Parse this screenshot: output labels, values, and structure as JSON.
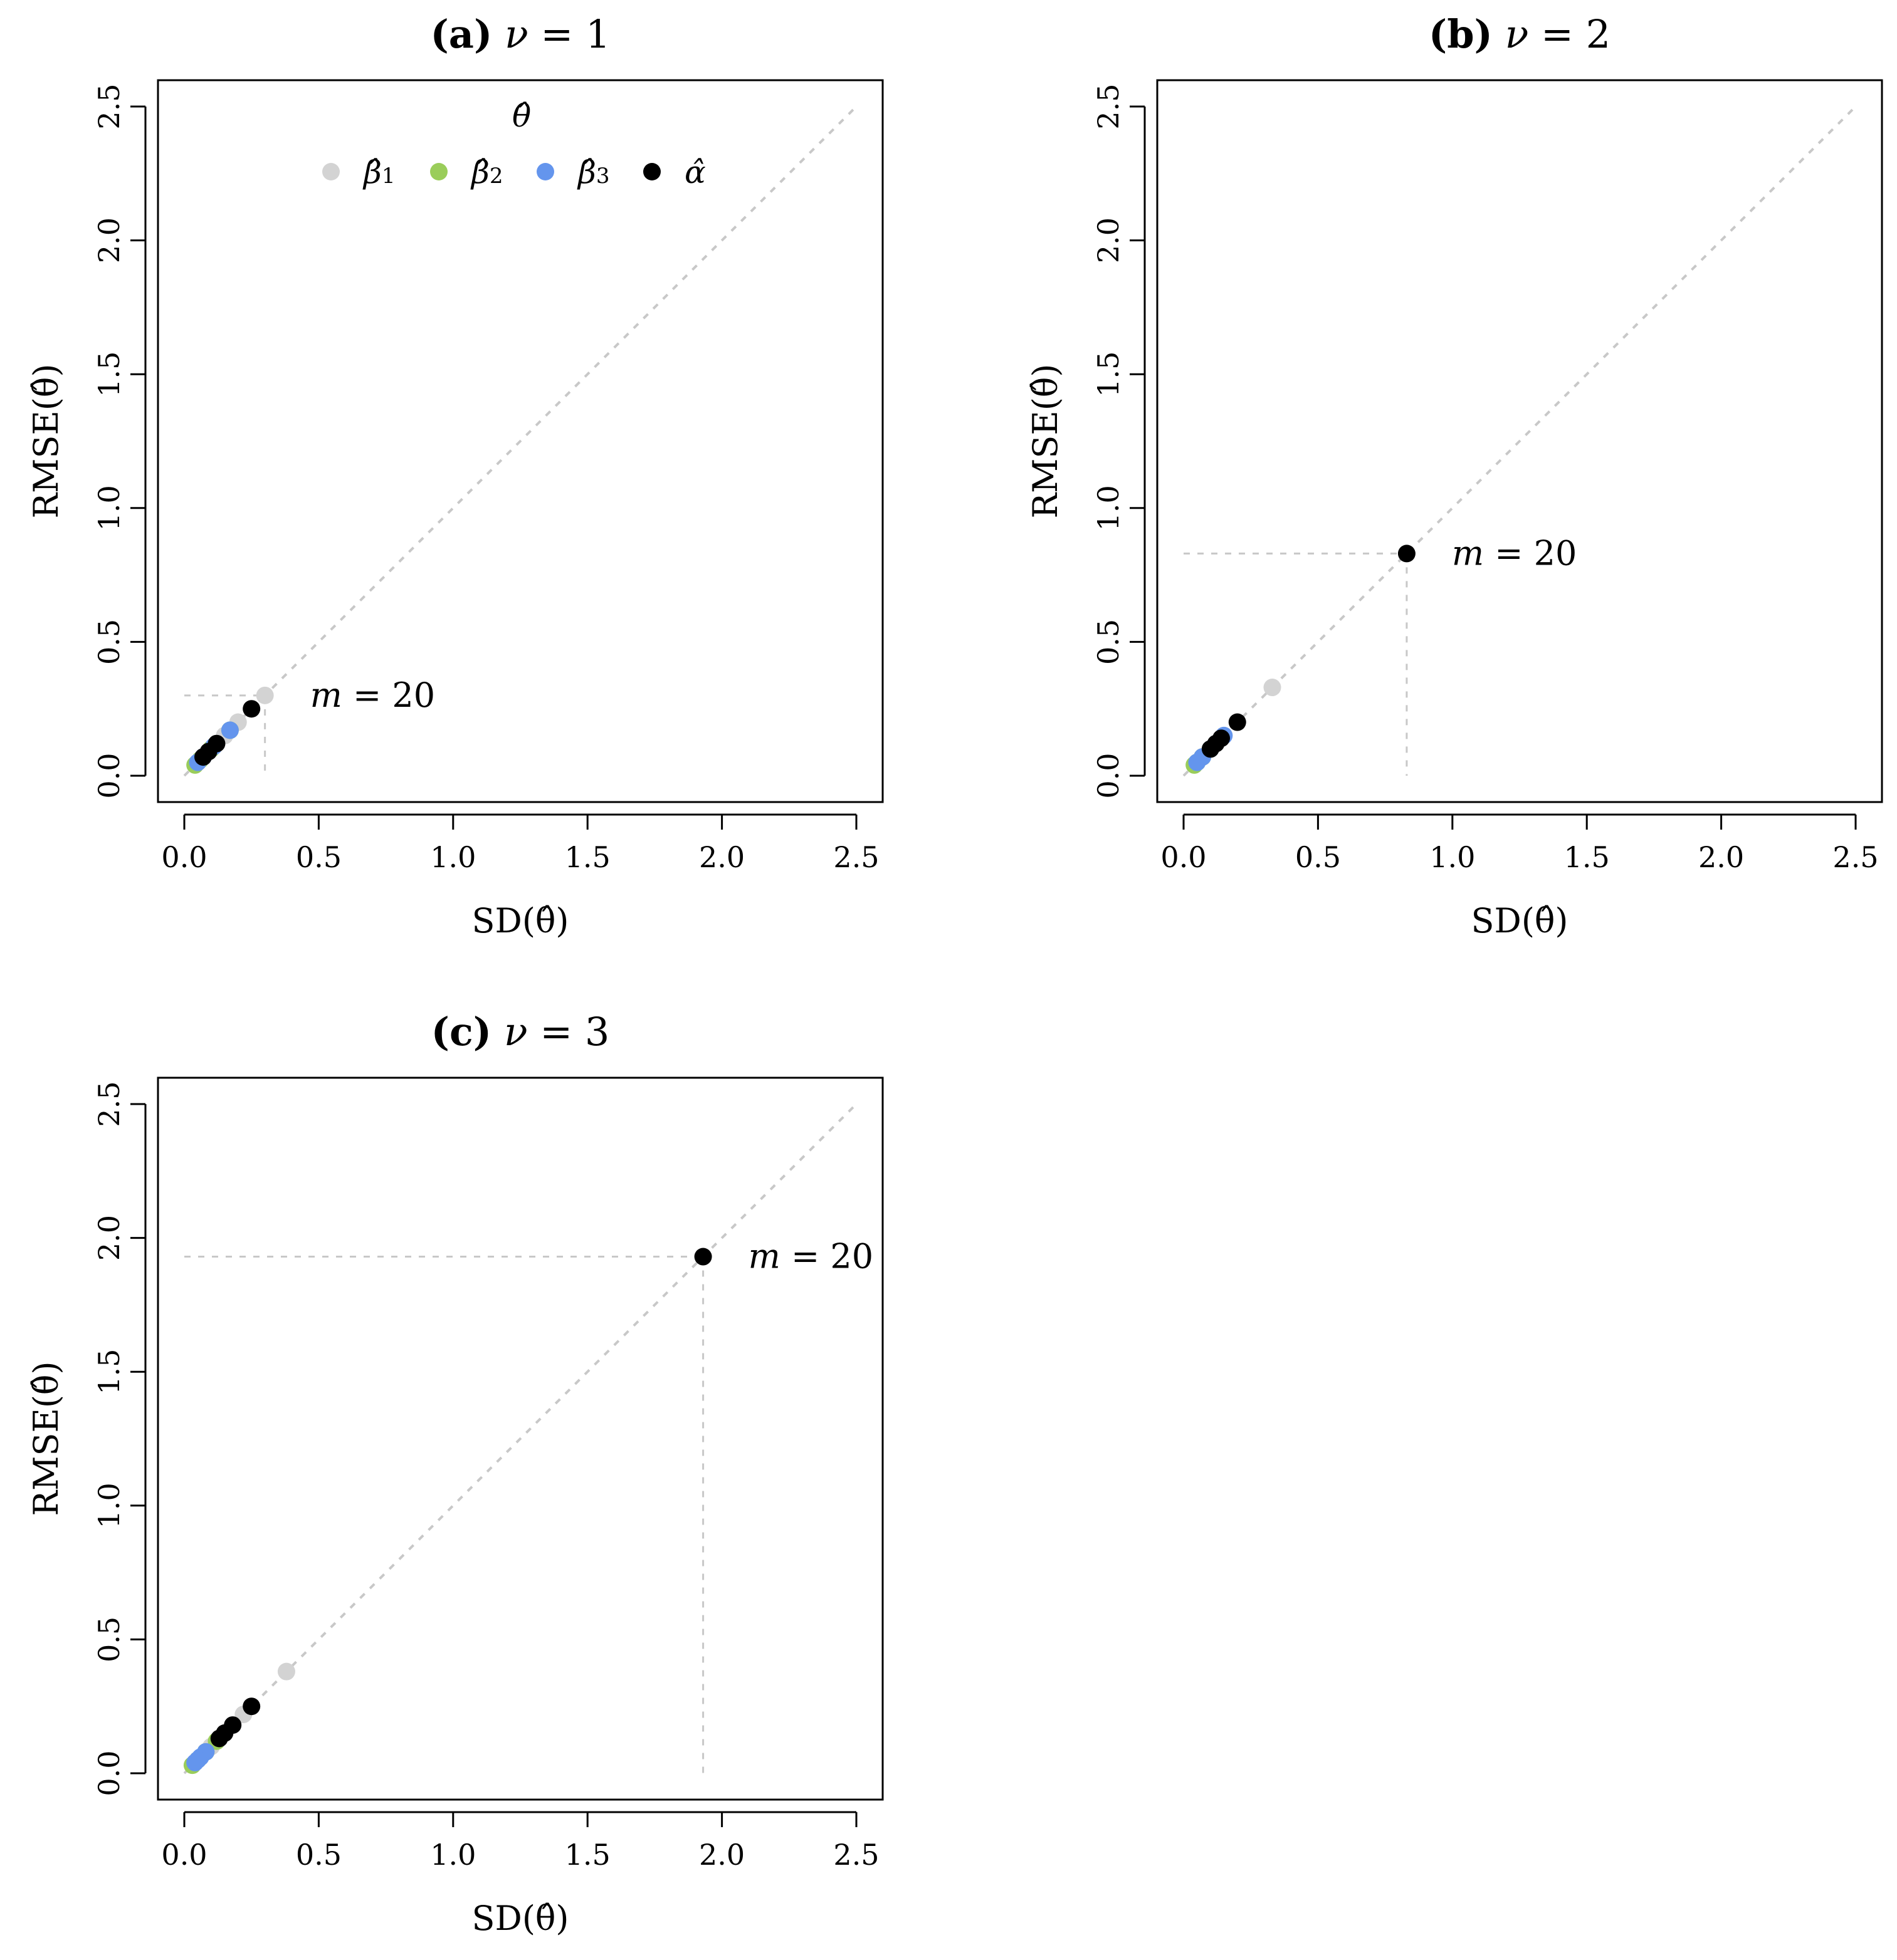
{
  "chart_data": [
    {
      "type": "scatter",
      "panel": "a",
      "title_bold": "(a)",
      "title_param": "ν",
      "title_rest": "= 1",
      "xlabel": "SD(θ̂)",
      "ylabel": "RMSE(θ̂)",
      "xlim": [
        0,
        2.5
      ],
      "ylim": [
        0,
        2.5
      ],
      "ticks": [
        "0.0",
        "0.5",
        "1.0",
        "1.5",
        "2.0",
        "2.5"
      ],
      "reference_line": "y = x",
      "annotation": {
        "var": "m",
        "text": "= 20",
        "x": 0.3,
        "y": 0.3
      },
      "legend": {
        "title": "θ̂",
        "entries": [
          {
            "key": "beta1",
            "label": "β̂",
            "sub": "1"
          },
          {
            "key": "beta2",
            "label": "β̂",
            "sub": "2"
          },
          {
            "key": "beta3",
            "label": "β̂",
            "sub": "3"
          },
          {
            "key": "alpha",
            "label": "α̂",
            "sub": ""
          }
        ]
      },
      "series": [
        {
          "name": "beta1",
          "color": "#d3d3d3",
          "points": [
            [
              0.3,
              0.3
            ],
            [
              0.2,
              0.2
            ],
            [
              0.15,
              0.15
            ],
            [
              0.1,
              0.1
            ]
          ]
        },
        {
          "name": "beta2",
          "color": "#9acd5a",
          "points": [
            [
              0.17,
              0.17
            ],
            [
              0.1,
              0.1
            ],
            [
              0.06,
              0.06
            ],
            [
              0.04,
              0.04
            ]
          ]
        },
        {
          "name": "beta3",
          "color": "#6495ed",
          "points": [
            [
              0.17,
              0.17
            ],
            [
              0.11,
              0.11
            ],
            [
              0.07,
              0.07
            ],
            [
              0.05,
              0.05
            ]
          ]
        },
        {
          "name": "alpha",
          "color": "#000000",
          "points": [
            [
              0.25,
              0.25
            ],
            [
              0.12,
              0.12
            ],
            [
              0.09,
              0.09
            ],
            [
              0.07,
              0.07
            ]
          ]
        }
      ]
    },
    {
      "type": "scatter",
      "panel": "b",
      "title_bold": "(b)",
      "title_param": "ν",
      "title_rest": "= 2",
      "xlabel": "SD(θ̂)",
      "ylabel": "RMSE(θ̂)",
      "xlim": [
        0,
        2.5
      ],
      "ylim": [
        0,
        2.5
      ],
      "ticks": [
        "0.0",
        "0.5",
        "1.0",
        "1.5",
        "2.0",
        "2.5"
      ],
      "reference_line": "y = x",
      "annotation": {
        "var": "m",
        "text": "= 20",
        "x": 0.83,
        "y": 0.83
      },
      "series": [
        {
          "name": "beta1",
          "color": "#d3d3d3",
          "points": [
            [
              0.33,
              0.33
            ],
            [
              0.15,
              0.15
            ],
            [
              0.1,
              0.1
            ],
            [
              0.07,
              0.07
            ]
          ]
        },
        {
          "name": "beta2",
          "color": "#9acd5a",
          "points": [
            [
              0.1,
              0.1
            ],
            [
              0.07,
              0.07
            ],
            [
              0.05,
              0.05
            ],
            [
              0.04,
              0.04
            ]
          ]
        },
        {
          "name": "beta3",
          "color": "#6495ed",
          "points": [
            [
              0.15,
              0.15
            ],
            [
              0.1,
              0.1
            ],
            [
              0.07,
              0.07
            ],
            [
              0.05,
              0.05
            ]
          ]
        },
        {
          "name": "alpha",
          "color": "#000000",
          "points": [
            [
              0.83,
              0.83
            ],
            [
              0.2,
              0.2
            ],
            [
              0.14,
              0.14
            ],
            [
              0.12,
              0.12
            ],
            [
              0.1,
              0.1
            ]
          ]
        }
      ]
    },
    {
      "type": "scatter",
      "panel": "c",
      "title_bold": "(c)",
      "title_param": "ν",
      "title_rest": "= 3",
      "xlabel": "SD(θ̂)",
      "ylabel": "RMSE(θ̂)",
      "xlim": [
        0,
        2.5
      ],
      "ylim": [
        0,
        2.5
      ],
      "ticks": [
        "0.0",
        "0.5",
        "1.0",
        "1.5",
        "2.0",
        "2.5"
      ],
      "reference_line": "y = x",
      "annotation": {
        "var": "m",
        "text": "= 20",
        "x": 1.93,
        "y": 1.93
      },
      "series": [
        {
          "name": "beta1",
          "color": "#d3d3d3",
          "points": [
            [
              0.38,
              0.38
            ],
            [
              0.22,
              0.22
            ],
            [
              0.15,
              0.15
            ],
            [
              0.1,
              0.1
            ]
          ]
        },
        {
          "name": "beta2",
          "color": "#9acd5a",
          "points": [
            [
              0.12,
              0.12
            ],
            [
              0.08,
              0.08
            ],
            [
              0.05,
              0.05
            ],
            [
              0.03,
              0.03
            ]
          ]
        },
        {
          "name": "beta3",
          "color": "#6495ed",
          "points": [
            [
              0.08,
              0.08
            ],
            [
              0.06,
              0.06
            ],
            [
              0.05,
              0.05
            ],
            [
              0.04,
              0.04
            ]
          ]
        },
        {
          "name": "alpha",
          "color": "#000000",
          "points": [
            [
              1.93,
              1.93
            ],
            [
              0.25,
              0.25
            ],
            [
              0.18,
              0.18
            ],
            [
              0.15,
              0.15
            ],
            [
              0.13,
              0.13
            ]
          ]
        }
      ]
    }
  ]
}
